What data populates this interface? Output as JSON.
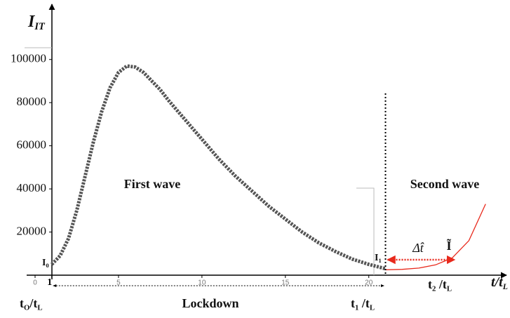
{
  "chart_data": {
    "type": "line",
    "y_label": [
      {
        "base": "I"
      },
      {
        "sub": "IT"
      }
    ],
    "x_label": [
      {
        "base": "t/t"
      },
      {
        "sub": "L"
      }
    ],
    "xlim": [
      0,
      28
    ],
    "xticks": [
      0,
      1,
      5,
      10,
      15,
      20
    ],
    "ylim": [
      0,
      124000
    ],
    "yticks": [
      20000,
      40000,
      60000,
      80000,
      100000
    ],
    "series": [
      {
        "name": "First wave",
        "color": "#555555",
        "x": [
          1,
          1.5,
          2,
          2.5,
          3,
          3.5,
          4,
          4.5,
          5,
          5.5,
          6,
          6.5,
          7,
          7.5,
          8,
          9,
          10,
          11,
          12,
          13,
          14,
          15,
          16,
          17,
          18,
          19,
          20,
          21
        ],
        "values": [
          5000,
          9000,
          17000,
          30000,
          46000,
          62000,
          76000,
          87000,
          94000,
          97000,
          96500,
          94000,
          90000,
          86000,
          81000,
          72000,
          63000,
          54000,
          46000,
          39000,
          32000,
          26000,
          20000,
          15000,
          11000,
          7500,
          5000,
          3000
        ]
      },
      {
        "name": "Second wave",
        "color": "#e8291c",
        "x": [
          21,
          22,
          23,
          24,
          25,
          26,
          27
        ],
        "values": [
          2500,
          2700,
          3300,
          4800,
          8000,
          16000,
          33000
        ]
      }
    ],
    "annotations": {
      "t0": [
        {
          "base": "t"
        },
        {
          "sub": "O"
        },
        {
          "base": "/t"
        },
        {
          "sub": "L"
        }
      ],
      "t1": [
        {
          "base": "t"
        },
        {
          "sub": "1"
        },
        {
          "base": " /t"
        },
        {
          "sub": "L"
        }
      ],
      "t2": [
        {
          "base": "t"
        },
        {
          "sub": "2"
        },
        {
          "base": " /t"
        },
        {
          "sub": "L"
        }
      ],
      "lockdown": "Lockdown",
      "i0": [
        {
          "base": "I"
        },
        {
          "sub": "0"
        }
      ],
      "i1": [
        {
          "base": "I"
        },
        {
          "sub": "1"
        }
      ],
      "delta_t": "Δt̂",
      "i_tilde": "Ĩ"
    }
  }
}
